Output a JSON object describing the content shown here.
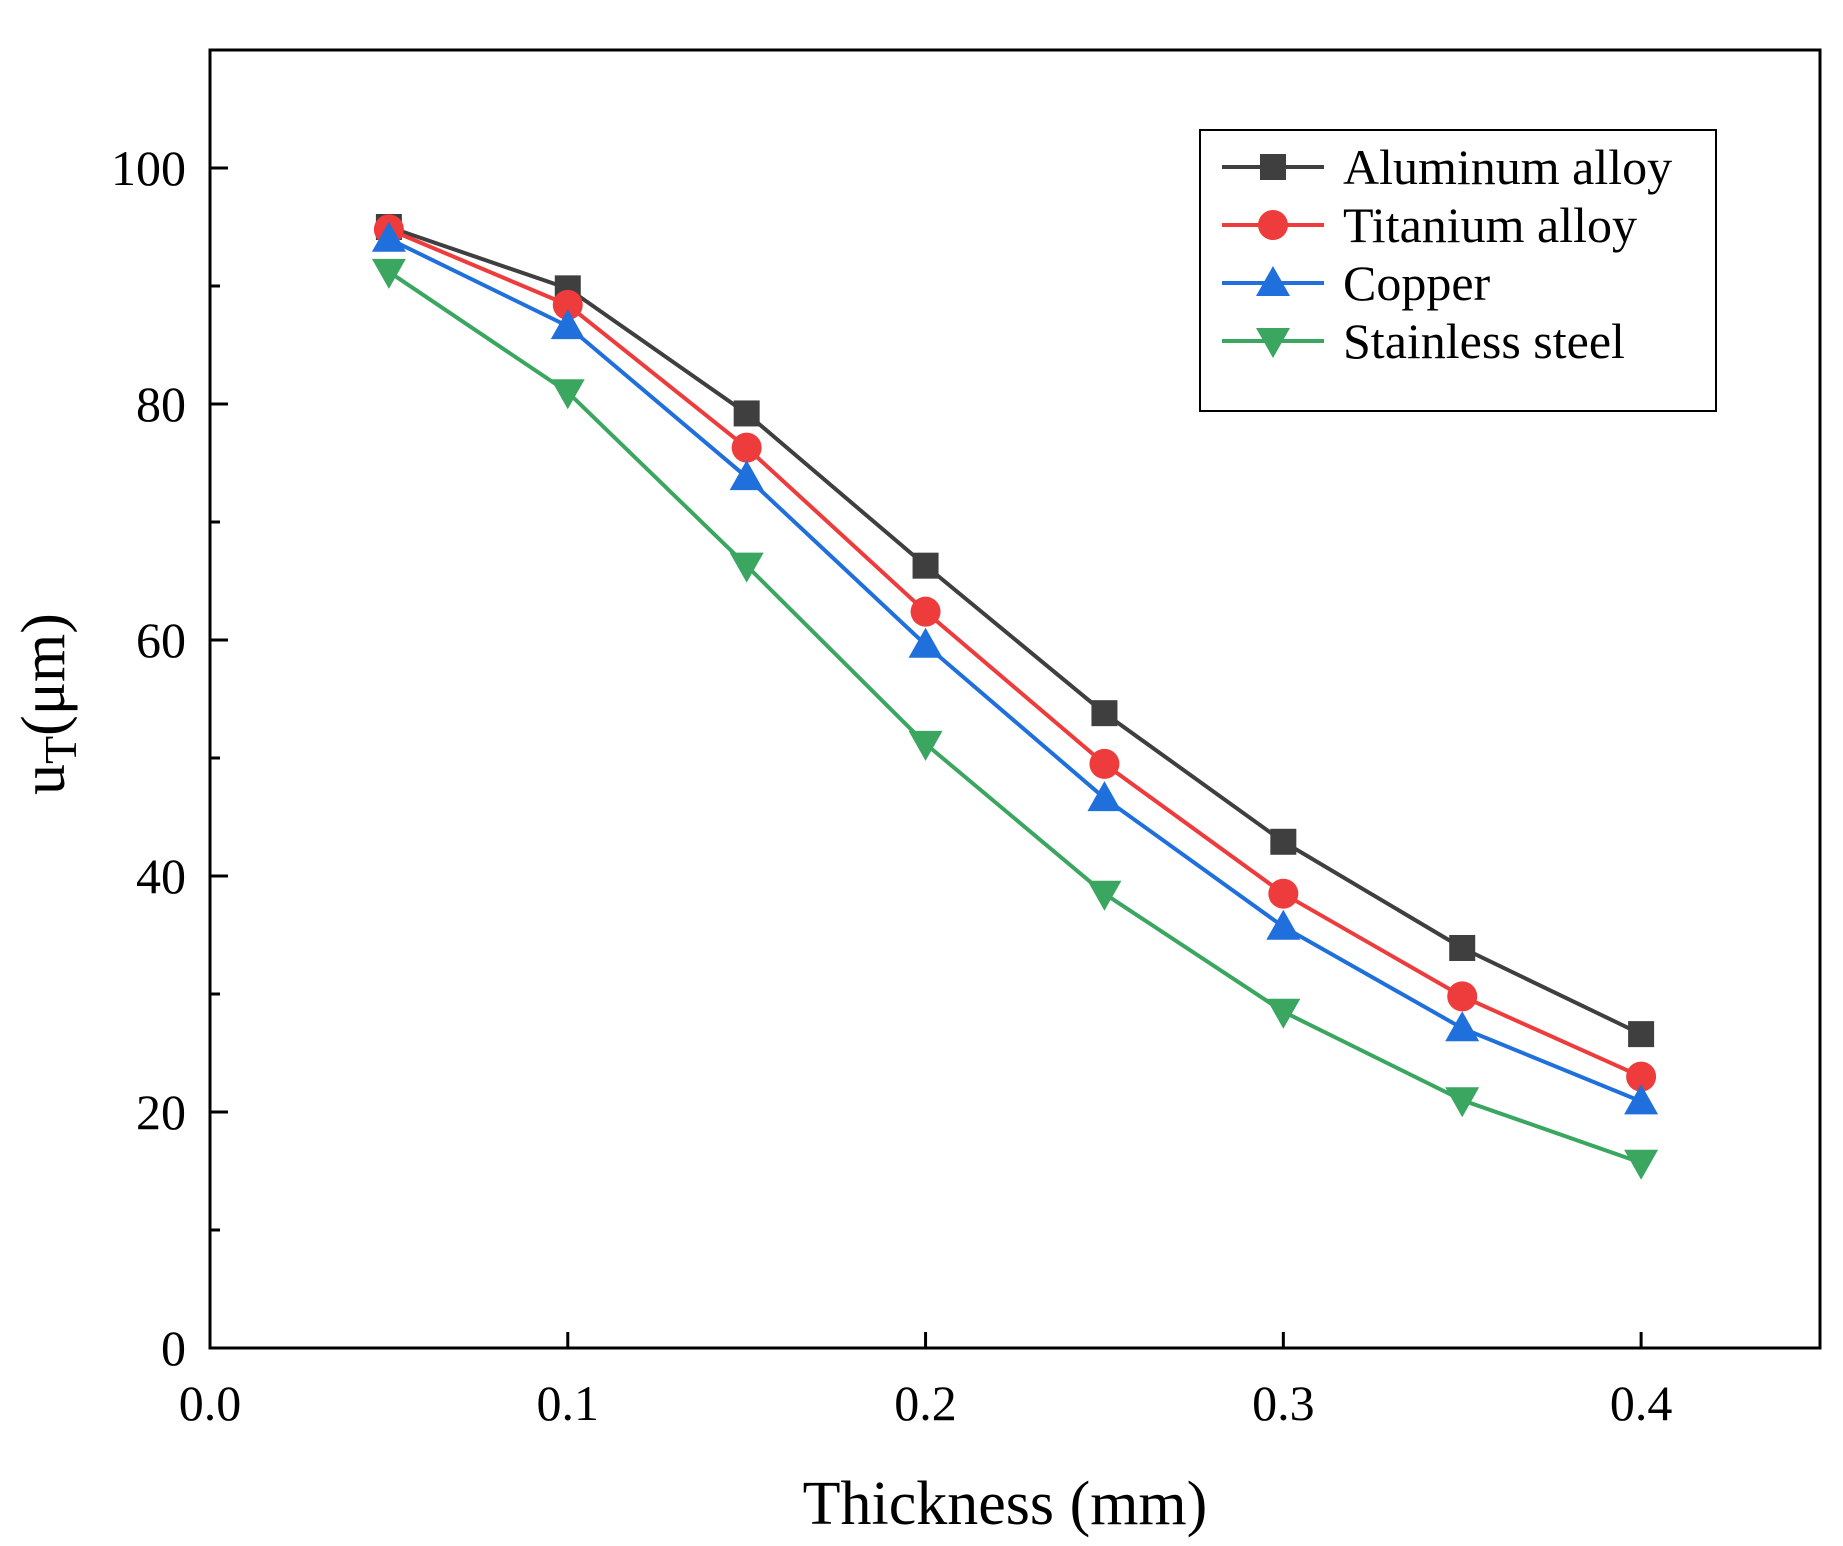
{
  "chart_data": {
    "type": "line",
    "title": "",
    "xlabel": "Thickness (mm)",
    "ylabel": {
      "main": "u",
      "subscript": "T",
      "unit": "(μm)"
    },
    "xlim": [
      0.0,
      0.45
    ],
    "ylim": [
      0,
      110
    ],
    "xticks": [
      0.0,
      0.1,
      0.2,
      0.3,
      0.4
    ],
    "xtick_labels": [
      "0.0",
      "0.1",
      "0.2",
      "0.3",
      "0.4"
    ],
    "yticks": [
      0,
      20,
      40,
      60,
      80,
      100
    ],
    "ytick_labels": [
      "0",
      "20",
      "40",
      "60",
      "80",
      "100"
    ],
    "y_minor_step": 10,
    "grid": false,
    "legend_position": "top-right",
    "x": [
      0.05,
      0.1,
      0.15,
      0.2,
      0.25,
      0.3,
      0.35,
      0.4
    ],
    "series": [
      {
        "name": "Aluminum alloy",
        "marker": "square",
        "color": "#3f3f3f",
        "values": [
          95.0,
          89.8,
          79.2,
          66.3,
          53.8,
          42.9,
          33.9,
          26.6
        ]
      },
      {
        "name": "Titanium alloy",
        "marker": "circle",
        "color": "#ee3b3b",
        "values": [
          94.8,
          88.4,
          76.3,
          62.4,
          49.5,
          38.5,
          29.8,
          23.0
        ]
      },
      {
        "name": "Copper",
        "marker": "triangle-up",
        "color": "#1f6fdc",
        "values": [
          94.0,
          86.6,
          73.8,
          59.6,
          46.6,
          35.7,
          27.1,
          20.9
        ]
      },
      {
        "name": "Stainless steel",
        "marker": "triangle-down",
        "color": "#3aa660",
        "values": [
          91.2,
          81.0,
          66.3,
          51.2,
          38.5,
          28.5,
          21.0,
          15.7
        ]
      }
    ]
  }
}
